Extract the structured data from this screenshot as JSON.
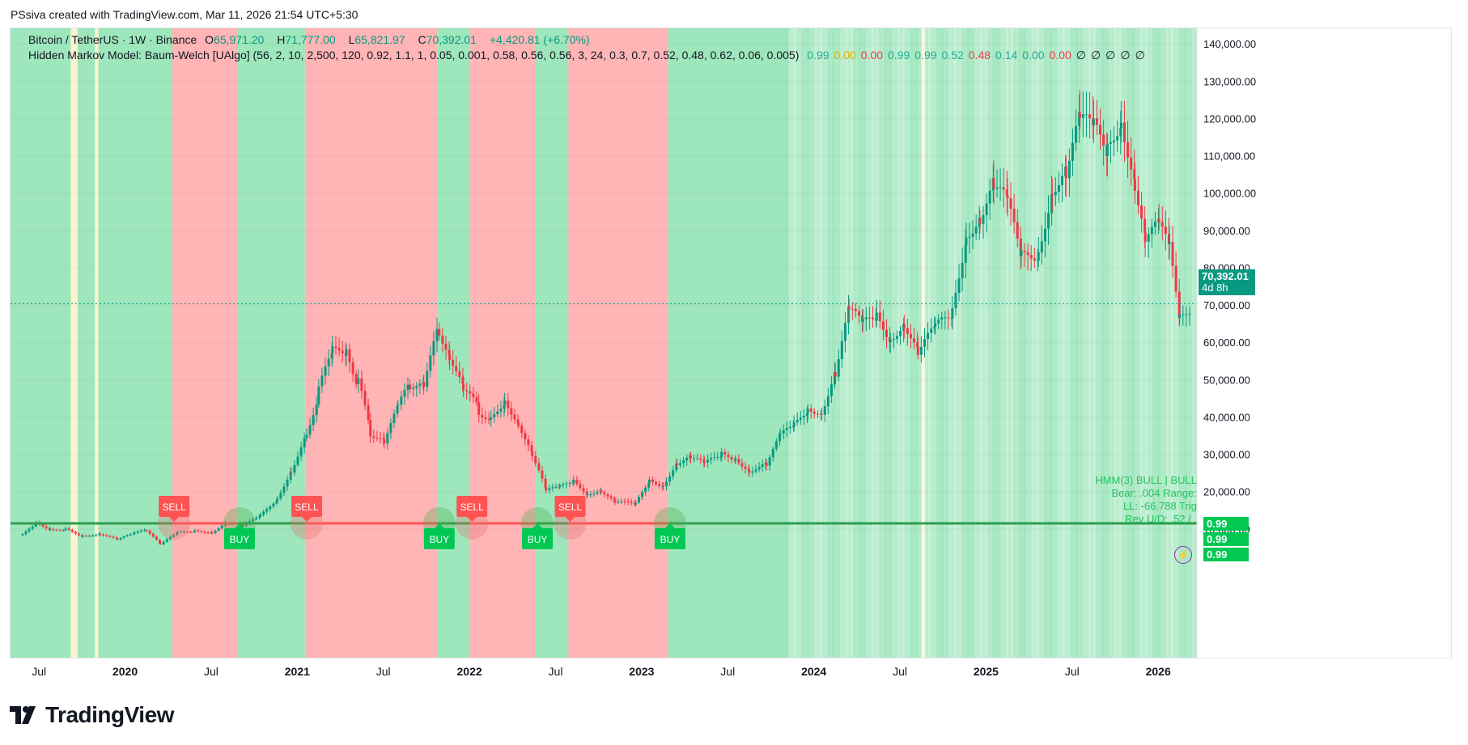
{
  "header": {
    "credit": "PSsiva created with TradingView.com, Mar 11, 2026 21:54 UTC+5:30"
  },
  "legend": {
    "symbol": "Bitcoin / TetherUS · 1W · Binance",
    "open_label": "O",
    "open": "65,971.20",
    "high_label": "H",
    "high": "71,777.00",
    "low_label": "L",
    "low": "65,821.97",
    "close_label": "C",
    "close": "70,392.01",
    "change": "+4,420.81 (+6.70%)",
    "indicator": "Hidden Markov Model: Baum-Welch [UAlgo] (56, 2, 10, 2,500, 120, 0.92, 1.1, 1, 0.05, 0.001, 0.58, 0.56, 0.56, 3, 24, 0.3, 0.7, 0.52, 0.48, 0.62, 0.06, 0.005)",
    "indicator_values": [
      {
        "v": "0.99",
        "c": "#22ab94"
      },
      {
        "v": "0.00",
        "c": "#e0b000"
      },
      {
        "v": "0.00",
        "c": "#f23645"
      },
      {
        "v": "0.99",
        "c": "#22ab94"
      },
      {
        "v": "0.99",
        "c": "#22ab94"
      },
      {
        "v": "0.52",
        "c": "#22ab94"
      },
      {
        "v": "0.48",
        "c": "#f23645"
      },
      {
        "v": "0.14",
        "c": "#22ab94"
      },
      {
        "v": "0.00",
        "c": "#22ab94"
      },
      {
        "v": "0.00",
        "c": "#f23645"
      },
      {
        "v": "∅",
        "c": "#131722"
      },
      {
        "v": "∅",
        "c": "#131722"
      },
      {
        "v": "∅",
        "c": "#131722"
      },
      {
        "v": "∅",
        "c": "#131722"
      },
      {
        "v": "∅",
        "c": "#131722"
      }
    ]
  },
  "price_badge": {
    "price": "70,392.01",
    "countdown": "4d 8h"
  },
  "hmm_table": {
    "line1": "HMM(3) BULL | BULL",
    "line2": "Bear: .004  Range:",
    "line3": "LL: -66.788  Trig",
    "line4": "Rev U/D: .52 / ."
  },
  "right_badges": [
    "0.99",
    "0.99",
    "0.99"
  ],
  "footer": {
    "brand": "TradingView"
  },
  "colors": {
    "bull": "#9ee6bc",
    "bear": "#ffb5b5",
    "up": "#089981",
    "down": "#f23645",
    "buy": "#00c853",
    "sell": "#ff5252"
  },
  "chart_data": {
    "type": "candlestick",
    "title": "Bitcoin / TetherUS · 1W · Binance",
    "ylabel": "",
    "ylim": [
      0,
      142000
    ],
    "y_ticks": [
      "140,000.00",
      "130,000.00",
      "120,000.00",
      "110,000.00",
      "100,000.00",
      "90,000.00",
      "80,000.00",
      "70,000.00",
      "60,000.00",
      "50,000.00",
      "40,000.00",
      "30,000.00",
      "20,000.00",
      "10,000.00"
    ],
    "y_tick_values": [
      140000,
      130000,
      120000,
      110000,
      100000,
      90000,
      80000,
      70000,
      60000,
      50000,
      40000,
      30000,
      20000,
      10000
    ],
    "x_ticks": [
      {
        "label": "Jul",
        "t": 2019.5,
        "bold": false
      },
      {
        "label": "2020",
        "t": 2020.0,
        "bold": true
      },
      {
        "label": "Jul",
        "t": 2020.5,
        "bold": false
      },
      {
        "label": "2021",
        "t": 2021.0,
        "bold": true
      },
      {
        "label": "Jul",
        "t": 2021.5,
        "bold": false
      },
      {
        "label": "2022",
        "t": 2022.0,
        "bold": true
      },
      {
        "label": "Jul",
        "t": 2022.5,
        "bold": false
      },
      {
        "label": "2023",
        "t": 2023.0,
        "bold": true
      },
      {
        "label": "Jul",
        "t": 2023.5,
        "bold": false
      },
      {
        "label": "2024",
        "t": 2024.0,
        "bold": true
      },
      {
        "label": "Jul",
        "t": 2024.5,
        "bold": false
      },
      {
        "label": "2025",
        "t": 2025.0,
        "bold": true
      },
      {
        "label": "Jul",
        "t": 2025.5,
        "bold": false
      },
      {
        "label": "2026",
        "t": 2026.0,
        "bold": true
      }
    ],
    "close_series": [
      [
        2019.4,
        8300
      ],
      [
        2019.48,
        11500
      ],
      [
        2019.56,
        10200
      ],
      [
        2019.65,
        9800
      ],
      [
        2019.75,
        8200
      ],
      [
        2019.85,
        8800
      ],
      [
        2019.95,
        7200
      ],
      [
        2020.05,
        8700
      ],
      [
        2020.12,
        9800
      ],
      [
        2020.2,
        5800
      ],
      [
        2020.3,
        8900
      ],
      [
        2020.4,
        9600
      ],
      [
        2020.5,
        9200
      ],
      [
        2020.58,
        11700
      ],
      [
        2020.68,
        10600
      ],
      [
        2020.78,
        13500
      ],
      [
        2020.88,
        18500
      ],
      [
        2020.96,
        26000
      ],
      [
        2021.05,
        35000
      ],
      [
        2021.12,
        47000
      ],
      [
        2021.2,
        57000
      ],
      [
        2021.28,
        58000
      ],
      [
        2021.35,
        49000
      ],
      [
        2021.42,
        36000
      ],
      [
        2021.5,
        33000
      ],
      [
        2021.58,
        42000
      ],
      [
        2021.65,
        49000
      ],
      [
        2021.73,
        48000
      ],
      [
        2021.82,
        64000
      ],
      [
        2021.88,
        57000
      ],
      [
        2021.96,
        47000
      ],
      [
        2022.05,
        42000
      ],
      [
        2022.12,
        39000
      ],
      [
        2022.2,
        45000
      ],
      [
        2022.28,
        39000
      ],
      [
        2022.36,
        30000
      ],
      [
        2022.44,
        20000
      ],
      [
        2022.52,
        21000
      ],
      [
        2022.6,
        23000
      ],
      [
        2022.68,
        19800
      ],
      [
        2022.76,
        20500
      ],
      [
        2022.84,
        17000
      ],
      [
        2022.96,
        16500
      ],
      [
        2023.04,
        23000
      ],
      [
        2023.12,
        22000
      ],
      [
        2023.2,
        28000
      ],
      [
        2023.28,
        29000
      ],
      [
        2023.36,
        27000
      ],
      [
        2023.46,
        30000
      ],
      [
        2023.54,
        29300
      ],
      [
        2023.62,
        26000
      ],
      [
        2023.72,
        27000
      ],
      [
        2023.8,
        34500
      ],
      [
        2023.88,
        37500
      ],
      [
        2023.96,
        42500
      ],
      [
        2024.04,
        42000
      ],
      [
        2024.12,
        52000
      ],
      [
        2024.2,
        68000
      ],
      [
        2024.28,
        64000
      ],
      [
        2024.36,
        67000
      ],
      [
        2024.44,
        62000
      ],
      [
        2024.52,
        66000
      ],
      [
        2024.6,
        57000
      ],
      [
        2024.7,
        63000
      ],
      [
        2024.8,
        68000
      ],
      [
        2024.88,
        90000
      ],
      [
        2024.96,
        95000
      ],
      [
        2025.04,
        102000
      ],
      [
        2025.12,
        96000
      ],
      [
        2025.2,
        82000
      ],
      [
        2025.3,
        85000
      ],
      [
        2025.38,
        103000
      ],
      [
        2025.46,
        106000
      ],
      [
        2025.54,
        118000
      ],
      [
        2025.62,
        116000
      ],
      [
        2025.7,
        112000
      ],
      [
        2025.78,
        122000
      ],
      [
        2025.86,
        104000
      ],
      [
        2025.92,
        88000
      ],
      [
        2026.0,
        90000
      ],
      [
        2026.06,
        84000
      ],
      [
        2026.12,
        66000
      ],
      [
        2026.19,
        70392
      ]
    ],
    "regimes": [
      {
        "from": 2019.33,
        "to": 2019.68,
        "state": "bull"
      },
      {
        "from": 2019.68,
        "to": 2019.72,
        "state": "neutral"
      },
      {
        "from": 2019.72,
        "to": 2019.82,
        "state": "bull"
      },
      {
        "from": 2019.82,
        "to": 2019.84,
        "state": "neutral"
      },
      {
        "from": 2019.84,
        "to": 2020.27,
        "state": "bull"
      },
      {
        "from": 2020.27,
        "to": 2020.65,
        "state": "bear"
      },
      {
        "from": 2020.65,
        "to": 2021.04,
        "state": "bull"
      },
      {
        "from": 2021.04,
        "to": 2021.81,
        "state": "bear"
      },
      {
        "from": 2021.81,
        "to": 2022.0,
        "state": "bull"
      },
      {
        "from": 2022.0,
        "to": 2022.38,
        "state": "bear"
      },
      {
        "from": 2022.38,
        "to": 2022.57,
        "state": "bull"
      },
      {
        "from": 2022.57,
        "to": 2023.15,
        "state": "bear"
      },
      {
        "from": 2023.15,
        "to": 2024.62,
        "state": "bull"
      },
      {
        "from": 2024.62,
        "to": 2024.64,
        "state": "neutral"
      },
      {
        "from": 2024.64,
        "to": 2026.22,
        "state": "bull"
      }
    ],
    "signals": [
      {
        "type": "SELL",
        "t": 2020.28
      },
      {
        "type": "BUY",
        "t": 2020.66
      },
      {
        "type": "SELL",
        "t": 2021.05
      },
      {
        "type": "BUY",
        "t": 2021.82
      },
      {
        "type": "SELL",
        "t": 2022.01
      },
      {
        "type": "BUY",
        "t": 2022.39
      },
      {
        "type": "SELL",
        "t": 2022.58
      },
      {
        "type": "BUY",
        "t": 2023.16
      }
    ],
    "x_range": [
      2019.33,
      2026.22
    ]
  }
}
